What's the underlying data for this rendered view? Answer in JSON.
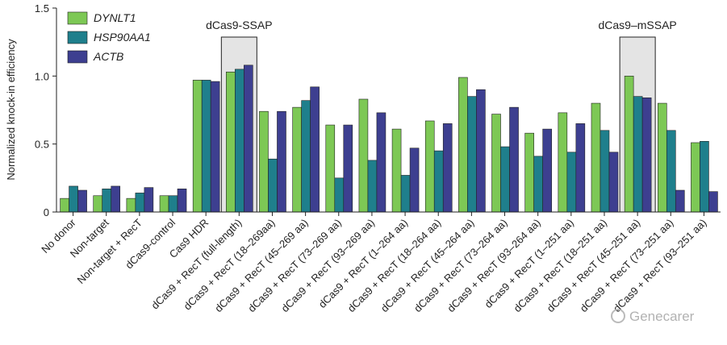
{
  "chart_data": {
    "type": "bar",
    "y_label": "Normalized knock-in efficiency",
    "categories": [
      "No donor",
      "Non-target",
      "Non-target + RecT",
      "dCas9-control",
      "Cas9 HDR",
      "dCas9 + RecT (full-length)",
      "dCas9 + RecT (18–269aa)",
      "dCas9 + RecT (45–269 aa)",
      "dCas9 + RecT (73–269 aa)",
      "dCas9 + RecT (93–269 aa)",
      "dCas9 + RecT (1–264 aa)",
      "dCas9 + RecT (18–264 aa)",
      "dCas9 + RecT (45–264 aa)",
      "dCas9 + RecT (73–264 aa)",
      "dCas9 + RecT (93–264 aa)",
      "dCas9 + RecT (1–251 aa)",
      "dCas9 + RecT (18–251 aa)",
      "dCas9 + RecT (45–251 aa)",
      "dCas9 + RecT (73–251 aa)",
      "dCas9 + RecT (93–251 aa)"
    ],
    "series": [
      {
        "name": "DYNLT1",
        "color": "#7dc855",
        "values": [
          0.1,
          0.12,
          0.1,
          0.12,
          0.97,
          1.03,
          0.74,
          0.77,
          0.64,
          0.83,
          0.61,
          0.67,
          0.99,
          0.72,
          0.58,
          0.73,
          0.8,
          1.0,
          0.8,
          0.51
        ]
      },
      {
        "name": "HSP90AA1",
        "color": "#1f7f8c",
        "values": [
          0.19,
          0.17,
          0.14,
          0.12,
          0.97,
          1.05,
          0.39,
          0.82,
          0.25,
          0.38,
          0.27,
          0.45,
          0.85,
          0.48,
          0.41,
          0.44,
          0.6,
          0.85,
          0.6,
          0.52
        ]
      },
      {
        "name": "ACTB",
        "color": "#3d3f90",
        "values": [
          0.16,
          0.19,
          0.18,
          0.17,
          0.96,
          1.08,
          0.74,
          0.92,
          0.64,
          0.73,
          0.47,
          0.65,
          0.9,
          0.77,
          0.61,
          0.65,
          0.44,
          0.84,
          0.16,
          0.15
        ]
      }
    ],
    "ylim": [
      0,
      1.5
    ],
    "yticks": [
      0,
      0.5,
      {
        "value": 1,
        "label": "1.0"
      },
      1.5
    ],
    "legend": "upper left",
    "annotations": [
      "dCas9-SSAP",
      "dCas9–mSSAP"
    ],
    "watermark": "Genecarer"
  }
}
